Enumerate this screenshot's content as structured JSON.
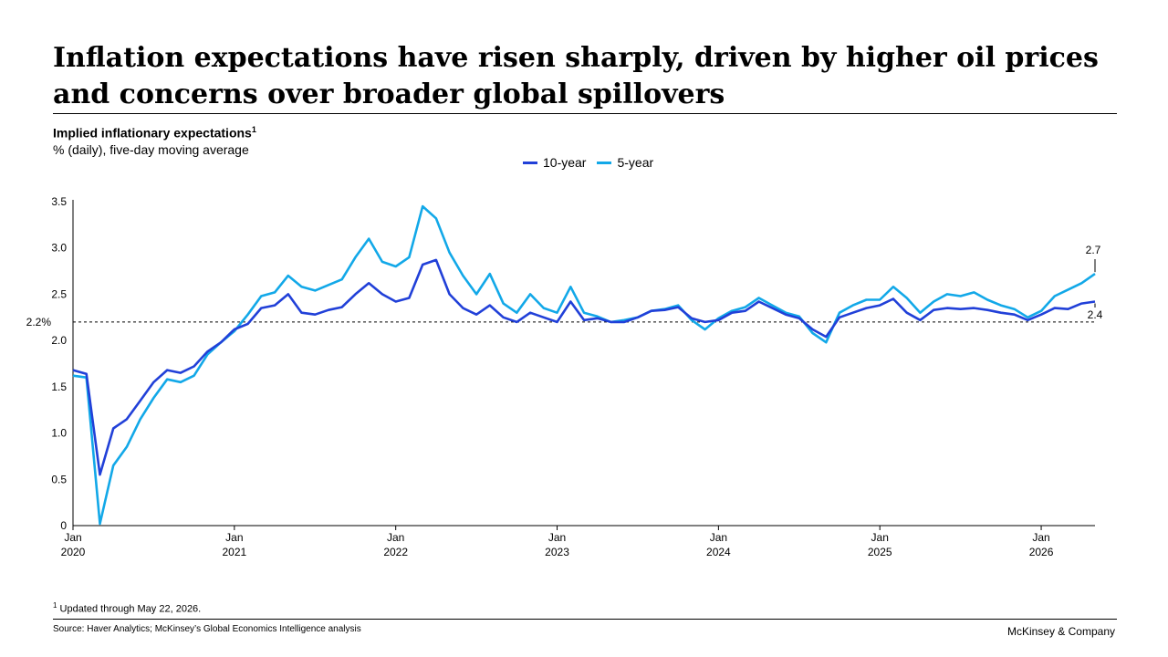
{
  "title": "Inflation expectations have risen sharply, driven by higher oil prices and concerns over broader global spillovers",
  "subtitle": "Implied inflationary expectations",
  "subtitle_note_marker": "1",
  "unit_label": "% (daily), five-day moving average",
  "footnote": {
    "marker": "1",
    "text": " Updated through May 22, 2026."
  },
  "source": "Source: Haver Analytics; McKinsey’s Global Economics Intelligence analysis",
  "brand": "McKinsey & Company",
  "colors": {
    "ten_year": "#2140d8",
    "five_year": "#12a8e8"
  },
  "chart_data": {
    "type": "line",
    "x_range": [
      "2020-01",
      "2026-05"
    ],
    "ylim": [
      0,
      3.5
    ],
    "yticks": [
      {
        "value": 0,
        "label": "0"
      },
      {
        "value": 0.5,
        "label": "0.5"
      },
      {
        "value": 1.0,
        "label": "1.0"
      },
      {
        "value": 1.5,
        "label": "1.5"
      },
      {
        "value": 2.0,
        "label": "2.0"
      },
      {
        "value": 2.5,
        "label": "2.5"
      },
      {
        "value": 3.0,
        "label": "3.0"
      },
      {
        "value": 3.5,
        "label": "3.5"
      }
    ],
    "xticks": [
      {
        "date": "2020-01",
        "month": "Jan",
        "year": "2020"
      },
      {
        "date": "2021-01",
        "month": "Jan",
        "year": "2021"
      },
      {
        "date": "2022-01",
        "month": "Jan",
        "year": "2022"
      },
      {
        "date": "2023-01",
        "month": "Jan",
        "year": "2023"
      },
      {
        "date": "2024-01",
        "month": "Jan",
        "year": "2024"
      },
      {
        "date": "2025-01",
        "month": "Jan",
        "year": "2025"
      },
      {
        "date": "2026-01",
        "month": "Jan",
        "year": "2026"
      }
    ],
    "reference_line": {
      "value": 2.2,
      "label": "2.2%"
    },
    "legend_position": "top-center",
    "series": [
      {
        "name": "10-year",
        "color": "#2140d8",
        "end_label": "2.4",
        "points": [
          [
            "2020-01",
            1.68
          ],
          [
            "2020-02",
            1.64
          ],
          [
            "2020-03",
            0.55
          ],
          [
            "2020-04",
            1.05
          ],
          [
            "2020-05",
            1.15
          ],
          [
            "2020-06",
            1.35
          ],
          [
            "2020-07",
            1.55
          ],
          [
            "2020-08",
            1.68
          ],
          [
            "2020-09",
            1.65
          ],
          [
            "2020-10",
            1.72
          ],
          [
            "2020-11",
            1.88
          ],
          [
            "2020-12",
            1.98
          ],
          [
            "2021-01",
            2.12
          ],
          [
            "2021-02",
            2.18
          ],
          [
            "2021-03",
            2.35
          ],
          [
            "2021-04",
            2.38
          ],
          [
            "2021-05",
            2.5
          ],
          [
            "2021-06",
            2.3
          ],
          [
            "2021-07",
            2.28
          ],
          [
            "2021-08",
            2.33
          ],
          [
            "2021-09",
            2.36
          ],
          [
            "2021-10",
            2.5
          ],
          [
            "2021-11",
            2.62
          ],
          [
            "2021-12",
            2.5
          ],
          [
            "2022-01",
            2.42
          ],
          [
            "2022-02",
            2.46
          ],
          [
            "2022-03",
            2.82
          ],
          [
            "2022-04",
            2.87
          ],
          [
            "2022-05",
            2.5
          ],
          [
            "2022-06",
            2.35
          ],
          [
            "2022-07",
            2.28
          ],
          [
            "2022-08",
            2.38
          ],
          [
            "2022-09",
            2.25
          ],
          [
            "2022-10",
            2.2
          ],
          [
            "2022-11",
            2.3
          ],
          [
            "2022-12",
            2.25
          ],
          [
            "2023-01",
            2.2
          ],
          [
            "2023-02",
            2.42
          ],
          [
            "2023-03",
            2.22
          ],
          [
            "2023-04",
            2.24
          ],
          [
            "2023-05",
            2.2
          ],
          [
            "2023-06",
            2.2
          ],
          [
            "2023-07",
            2.25
          ],
          [
            "2023-08",
            2.32
          ],
          [
            "2023-09",
            2.33
          ],
          [
            "2023-10",
            2.36
          ],
          [
            "2023-11",
            2.24
          ],
          [
            "2023-12",
            2.2
          ],
          [
            "2024-01",
            2.22
          ],
          [
            "2024-02",
            2.3
          ],
          [
            "2024-03",
            2.32
          ],
          [
            "2024-04",
            2.42
          ],
          [
            "2024-05",
            2.35
          ],
          [
            "2024-06",
            2.28
          ],
          [
            "2024-07",
            2.24
          ],
          [
            "2024-08",
            2.12
          ],
          [
            "2024-09",
            2.04
          ],
          [
            "2024-10",
            2.25
          ],
          [
            "2024-11",
            2.3
          ],
          [
            "2024-12",
            2.35
          ],
          [
            "2025-01",
            2.38
          ],
          [
            "2025-02",
            2.45
          ],
          [
            "2025-03",
            2.3
          ],
          [
            "2025-04",
            2.22
          ],
          [
            "2025-05",
            2.33
          ],
          [
            "2025-06",
            2.35
          ],
          [
            "2025-07",
            2.34
          ],
          [
            "2025-08",
            2.35
          ],
          [
            "2025-09",
            2.33
          ],
          [
            "2025-10",
            2.3
          ],
          [
            "2025-11",
            2.28
          ],
          [
            "2025-12",
            2.22
          ],
          [
            "2026-01",
            2.28
          ],
          [
            "2026-02",
            2.35
          ],
          [
            "2026-03",
            2.34
          ],
          [
            "2026-04",
            2.4
          ],
          [
            "2026-05",
            2.42
          ]
        ]
      },
      {
        "name": "5-year",
        "color": "#12a8e8",
        "end_label": "2.7",
        "points": [
          [
            "2020-01",
            1.62
          ],
          [
            "2020-02",
            1.6
          ],
          [
            "2020-03",
            0.02
          ],
          [
            "2020-04",
            0.65
          ],
          [
            "2020-05",
            0.85
          ],
          [
            "2020-06",
            1.15
          ],
          [
            "2020-07",
            1.38
          ],
          [
            "2020-08",
            1.58
          ],
          [
            "2020-09",
            1.55
          ],
          [
            "2020-10",
            1.62
          ],
          [
            "2020-11",
            1.85
          ],
          [
            "2020-12",
            1.98
          ],
          [
            "2021-01",
            2.1
          ],
          [
            "2021-02",
            2.28
          ],
          [
            "2021-03",
            2.48
          ],
          [
            "2021-04",
            2.52
          ],
          [
            "2021-05",
            2.7
          ],
          [
            "2021-06",
            2.58
          ],
          [
            "2021-07",
            2.54
          ],
          [
            "2021-08",
            2.6
          ],
          [
            "2021-09",
            2.66
          ],
          [
            "2021-10",
            2.9
          ],
          [
            "2021-11",
            3.1
          ],
          [
            "2021-12",
            2.85
          ],
          [
            "2022-01",
            2.8
          ],
          [
            "2022-02",
            2.9
          ],
          [
            "2022-03",
            3.45
          ],
          [
            "2022-04",
            3.32
          ],
          [
            "2022-05",
            2.95
          ],
          [
            "2022-06",
            2.7
          ],
          [
            "2022-07",
            2.5
          ],
          [
            "2022-08",
            2.72
          ],
          [
            "2022-09",
            2.4
          ],
          [
            "2022-10",
            2.3
          ],
          [
            "2022-11",
            2.5
          ],
          [
            "2022-12",
            2.35
          ],
          [
            "2023-01",
            2.3
          ],
          [
            "2023-02",
            2.58
          ],
          [
            "2023-03",
            2.3
          ],
          [
            "2023-04",
            2.26
          ],
          [
            "2023-05",
            2.2
          ],
          [
            "2023-06",
            2.22
          ],
          [
            "2023-07",
            2.25
          ],
          [
            "2023-08",
            2.32
          ],
          [
            "2023-09",
            2.34
          ],
          [
            "2023-10",
            2.38
          ],
          [
            "2023-11",
            2.22
          ],
          [
            "2023-12",
            2.12
          ],
          [
            "2024-01",
            2.24
          ],
          [
            "2024-02",
            2.32
          ],
          [
            "2024-03",
            2.36
          ],
          [
            "2024-04",
            2.46
          ],
          [
            "2024-05",
            2.38
          ],
          [
            "2024-06",
            2.3
          ],
          [
            "2024-07",
            2.26
          ],
          [
            "2024-08",
            2.08
          ],
          [
            "2024-09",
            1.98
          ],
          [
            "2024-10",
            2.3
          ],
          [
            "2024-11",
            2.38
          ],
          [
            "2024-12",
            2.44
          ],
          [
            "2025-01",
            2.44
          ],
          [
            "2025-02",
            2.58
          ],
          [
            "2025-03",
            2.46
          ],
          [
            "2025-04",
            2.3
          ],
          [
            "2025-05",
            2.42
          ],
          [
            "2025-06",
            2.5
          ],
          [
            "2025-07",
            2.48
          ],
          [
            "2025-08",
            2.52
          ],
          [
            "2025-09",
            2.44
          ],
          [
            "2025-10",
            2.38
          ],
          [
            "2025-11",
            2.34
          ],
          [
            "2025-12",
            2.25
          ],
          [
            "2026-01",
            2.32
          ],
          [
            "2026-02",
            2.48
          ],
          [
            "2026-03",
            2.55
          ],
          [
            "2026-04",
            2.62
          ],
          [
            "2026-05",
            2.72
          ]
        ]
      }
    ]
  }
}
